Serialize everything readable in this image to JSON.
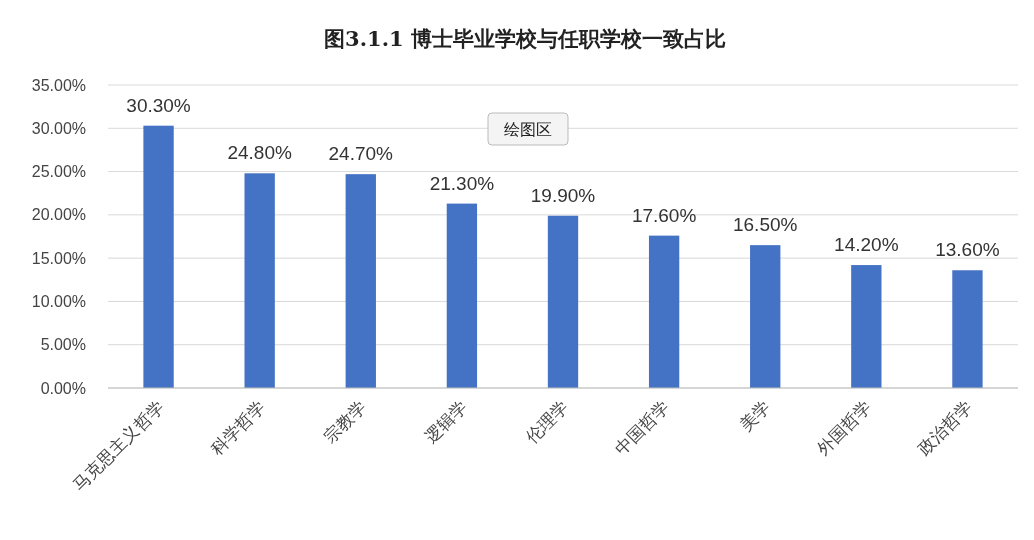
{
  "chart_data": {
    "type": "bar",
    "title": "图3.1.1 博士毕业学校与任职学校一致占比",
    "categories": [
      "马克思主义哲学",
      "科学哲学",
      "宗教学",
      "逻辑学",
      "伦理学",
      "中国哲学",
      "美学",
      "外国哲学",
      "政治哲学"
    ],
    "values": [
      30.3,
      24.8,
      24.7,
      21.3,
      19.9,
      17.6,
      16.5,
      14.2,
      13.6
    ],
    "value_labels": [
      "30.30%",
      "24.80%",
      "24.70%",
      "21.30%",
      "19.90%",
      "17.60%",
      "16.50%",
      "14.20%",
      "13.60%"
    ],
    "color": "#4472c4",
    "ylim": [
      0,
      35
    ],
    "yticks": [
      {
        "value": 0,
        "label": "0.00%"
      },
      {
        "value": 5,
        "label": "5.00%"
      },
      {
        "value": 10,
        "label": "10.00%"
      },
      {
        "value": 15,
        "label": "15.00%"
      },
      {
        "value": 20,
        "label": "20.00%"
      },
      {
        "value": 25,
        "label": "25.00%"
      },
      {
        "value": 30,
        "label": "30.00%"
      },
      {
        "value": 35,
        "label": "35.00%"
      }
    ],
    "grid": true,
    "annotations": [
      "绘图区"
    ]
  }
}
